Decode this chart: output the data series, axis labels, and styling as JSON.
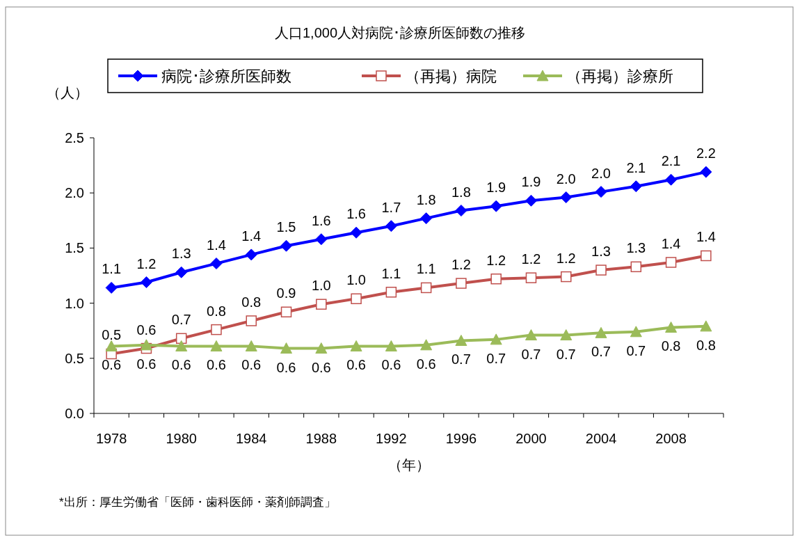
{
  "chart_data": {
    "type": "line",
    "title": "人口1,000人対病院･診療所医師数の推移",
    "ylabel": "（人）",
    "xlabel": "（年）",
    "annotations": [
      "*出所：厚生労働省「医師・歯科医師・薬剤師調査」"
    ],
    "categories": [
      "1978",
      null,
      "1980",
      null,
      "1984",
      null,
      "1988",
      null,
      "1992",
      null,
      "1996",
      null,
      "2000",
      null,
      "2004",
      null,
      "2008",
      null
    ],
    "ylim": [
      0,
      2.5
    ],
    "yticks": [
      {
        "value": 0,
        "label": "0.0"
      },
      {
        "value": 0.5,
        "label": "0.5"
      },
      {
        "value": 1,
        "label": "1.0"
      },
      {
        "value": 1.5,
        "label": "1.5"
      },
      {
        "value": 2,
        "label": "2.0"
      },
      {
        "value": 2.5,
        "label": "2.5"
      }
    ],
    "grid": false,
    "legend": "top",
    "line_style": "solid",
    "series": [
      {
        "name": "病院･診療所医師数",
        "color": "#0000ff",
        "marker": "diamond",
        "values": [
          1.14,
          1.19,
          1.28,
          1.36,
          1.44,
          1.52,
          1.58,
          1.64,
          1.7,
          1.77,
          1.84,
          1.88,
          1.93,
          1.96,
          2.01,
          2.06,
          2.12,
          2.19
        ],
        "value_labels": [
          "1.1",
          "1.2",
          "1.3",
          "1.4",
          "1.4",
          "1.5",
          "1.6",
          "1.6",
          "1.7",
          "1.8",
          "1.8",
          "1.9",
          "1.9",
          "2.0",
          "2.0",
          "2.1",
          "2.1",
          "2.2"
        ]
      },
      {
        "name": "（再掲）病院",
        "color": "#c0504d",
        "marker": "square",
        "values": [
          0.54,
          0.59,
          0.68,
          0.76,
          0.84,
          0.92,
          0.99,
          1.04,
          1.1,
          1.14,
          1.18,
          1.22,
          1.23,
          1.24,
          1.3,
          1.33,
          1.37,
          1.43
        ],
        "value_labels": [
          "0.5",
          "0.6",
          "0.7",
          "0.8",
          "0.8",
          "0.9",
          "1.0",
          "1.0",
          "1.1",
          "1.1",
          "1.2",
          "1.2",
          "1.2",
          "1.2",
          "1.3",
          "1.3",
          "1.4",
          "1.4"
        ]
      },
      {
        "name": "（再掲）診療所",
        "color": "#9bbb59",
        "marker": "triangle",
        "values": [
          0.61,
          0.62,
          0.61,
          0.61,
          0.61,
          0.59,
          0.59,
          0.61,
          0.61,
          0.62,
          0.66,
          0.67,
          0.71,
          0.71,
          0.73,
          0.74,
          0.78,
          0.79
        ],
        "value_labels": [
          "0.6",
          "0.6",
          "0.6",
          "0.6",
          "0.6",
          "0.6",
          "0.6",
          "0.6",
          "0.6",
          "0.6",
          "0.7",
          "0.7",
          "0.7",
          "0.7",
          "0.7",
          "0.7",
          "0.8",
          "0.8"
        ]
      }
    ]
  }
}
